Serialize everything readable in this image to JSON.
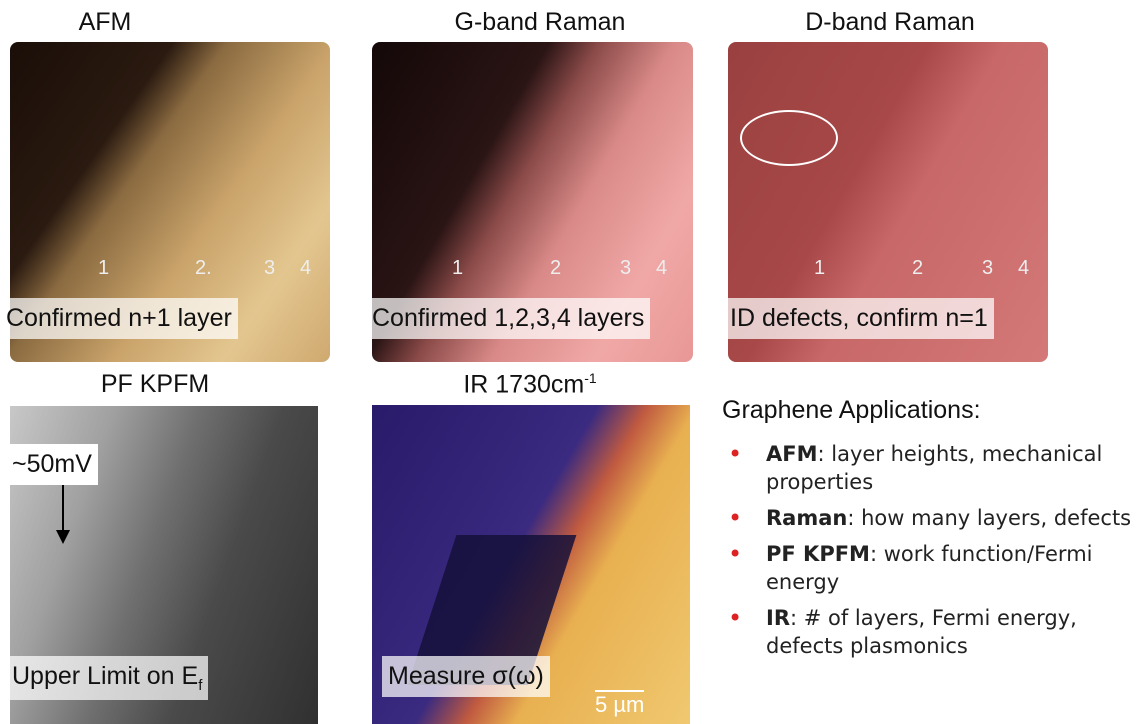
{
  "panels": [
    {
      "title": "AFM",
      "layers": [
        "1",
        "2.",
        "3",
        "4"
      ],
      "caption": "Confirmed n+1 layer"
    },
    {
      "title": "G-band Raman",
      "layers": [
        "1",
        "2",
        "3",
        "4"
      ],
      "caption": "Confirmed 1,2,3,4 layers"
    },
    {
      "title": "D-band Raman",
      "layers": [
        "1",
        "2",
        "3",
        "4"
      ],
      "caption": "ID defects, confirm n=1"
    },
    {
      "title": "PF KPFM",
      "annotation": "~50mV",
      "caption": "Upper Limit on E",
      "caption_sub": "f"
    },
    {
      "title": "IR 1730cm",
      "title_sup": "-1",
      "caption": "Measure σ(ω)",
      "scale_bar": "5 µm"
    }
  ],
  "applications": {
    "title": "Graphene Applications:",
    "items": [
      {
        "term": "AFM",
        "text": ": layer heights, mechanical properties"
      },
      {
        "term": "Raman",
        "text": ": how many layers, defects"
      },
      {
        "term": "PF KPFM",
        "text": ": work function/Fermi energy"
      },
      {
        "term": "IR",
        "text": ": # of layers, Fermi energy, defects plasmonics"
      }
    ]
  }
}
